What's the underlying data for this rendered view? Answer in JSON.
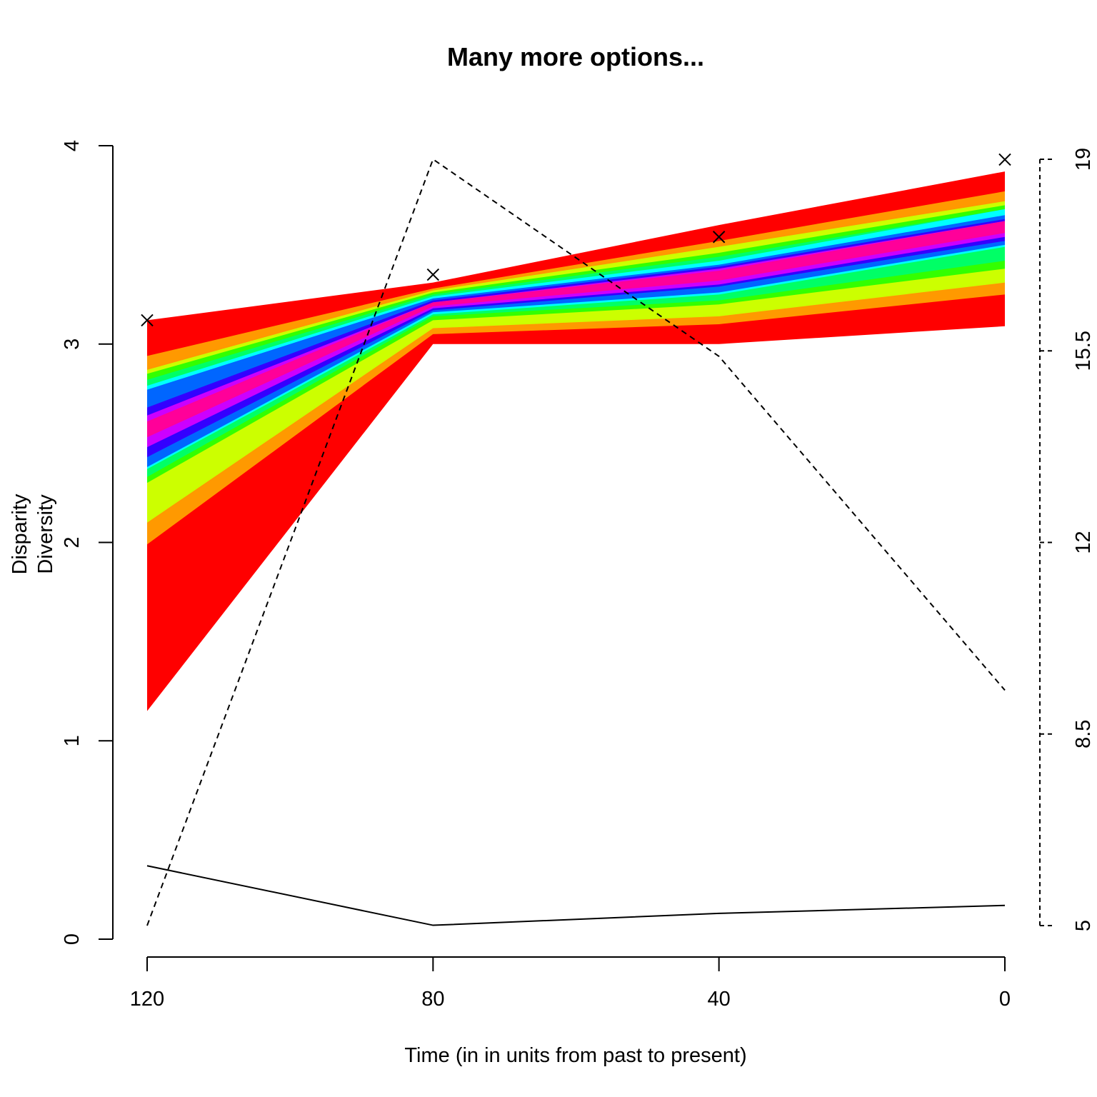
{
  "chart_data": {
    "type": "area",
    "title": "Many more options...",
    "xlabel": "Time (in in units from past to present)",
    "ylabel_lines": [
      "Disparity",
      "Diversity"
    ],
    "x": [
      120,
      80,
      40,
      0
    ],
    "x_tick_labels": [
      "120",
      "80",
      "40",
      "0"
    ],
    "xlim": [
      120,
      0
    ],
    "ylim_left": [
      0,
      4
    ],
    "left_ticks": [
      0,
      1,
      2,
      3,
      4
    ],
    "left_tick_labels": [
      "0",
      "1",
      "2",
      "3",
      "4"
    ],
    "ylim_right": [
      5,
      19
    ],
    "right_ticks": [
      5,
      8.5,
      12,
      15.5,
      19
    ],
    "right_tick_labels": [
      "5",
      "8.5",
      "12",
      "15.5",
      "19"
    ],
    "quantile_bands": [
      {
        "color": "#ff0000",
        "lower": [
          1.15,
          3.0,
          3.0,
          3.09
        ],
        "upper": [
          3.12,
          3.31,
          3.6,
          3.87
        ]
      },
      {
        "color": "#ff9900",
        "lower": [
          1.99,
          3.05,
          3.1,
          3.25
        ],
        "upper": [
          2.94,
          3.28,
          3.52,
          3.77
        ]
      },
      {
        "color": "#ccff00",
        "lower": [
          2.1,
          3.08,
          3.14,
          3.31
        ],
        "upper": [
          2.87,
          3.27,
          3.49,
          3.72
        ]
      },
      {
        "color": "#33ff00",
        "lower": [
          2.3,
          3.12,
          3.2,
          3.38
        ],
        "upper": [
          2.85,
          3.26,
          3.46,
          3.7
        ]
      },
      {
        "color": "#00ff66",
        "lower": [
          2.33,
          3.14,
          3.22,
          3.42
        ],
        "upper": [
          2.82,
          3.25,
          3.44,
          3.68
        ]
      },
      {
        "color": "#00ffff",
        "lower": [
          2.37,
          3.15,
          3.25,
          3.49
        ],
        "upper": [
          2.79,
          3.24,
          3.42,
          3.68
        ]
      },
      {
        "color": "#0066ff",
        "lower": [
          2.38,
          3.16,
          3.26,
          3.5
        ],
        "upper": [
          2.77,
          3.23,
          3.4,
          3.65
        ]
      },
      {
        "color": "#3300ff",
        "lower": [
          2.43,
          3.17,
          3.29,
          3.52
        ],
        "upper": [
          2.68,
          3.22,
          3.39,
          3.63
        ]
      },
      {
        "color": "#cc00ff",
        "lower": [
          2.48,
          3.18,
          3.3,
          3.54
        ],
        "upper": [
          2.64,
          3.21,
          3.38,
          3.62
        ]
      },
      {
        "color": "#ff0099",
        "lower": [
          2.53,
          3.19,
          3.32,
          3.56
        ],
        "upper": [
          2.61,
          3.21,
          3.37,
          3.62
        ]
      }
    ],
    "median_points": [
      3.12,
      3.35,
      3.54,
      3.93
    ],
    "point_marker": "cross",
    "solid_line": {
      "style": "solid",
      "values": [
        0.37,
        0.07,
        0.13,
        0.17
      ]
    },
    "dashed_line": {
      "style": "dashed",
      "axis": "right",
      "values": [
        5,
        19,
        15.4,
        9.3
      ]
    }
  }
}
